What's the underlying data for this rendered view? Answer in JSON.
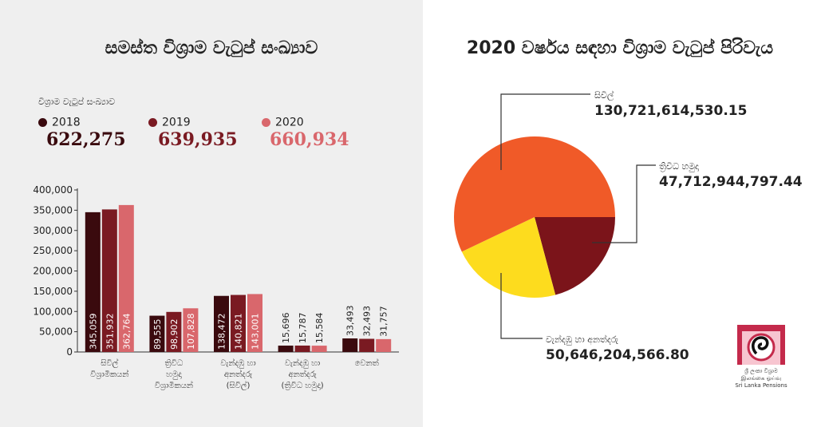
{
  "left_title": "සමස්ත විශ්‍රාම වැටුප් සංඛ්‍යාව",
  "right_title": "2020 වර්ෂය සඳහා විශ්‍රාම වැටුප් පිරිවැය",
  "totals": {
    "caption": "විශ්‍රාම වැටුප් සංඛ්‍යාව",
    "items": [
      {
        "year": "2018",
        "value": "622,275",
        "color": "#3a0a0e"
      },
      {
        "year": "2019",
        "value": "639,935",
        "color": "#7a1a22"
      },
      {
        "year": "2020",
        "value": "660,934",
        "color": "#d9676c"
      }
    ]
  },
  "logo": {
    "line1": "ශ්‍රී ලංකා විශ්‍රාම",
    "line2": "இலங்கை ஓய்வு",
    "line3": "Sri Lanka Pensions",
    "color": "#c42a4b"
  },
  "chart_data": [
    {
      "type": "bar",
      "categories": [
        [
          "සිවිල්",
          "විශ්‍රාමිකයන්"
        ],
        [
          "ත්‍රිවිධ",
          "හමුදා",
          "විශ්‍රාමිකයන්"
        ],
        [
          "වැන්දඹු හා",
          "අනත්දරු",
          "(සිවිල්)"
        ],
        [
          "වැන්දඹු හා",
          "අනත්දරු",
          "(ත්‍රිවිධ හමුදා)"
        ],
        [
          "වෙනත්"
        ]
      ],
      "series": [
        {
          "name": "2018",
          "color": "#3a0a0e",
          "values": [
            345059,
            89555,
            138472,
            15696,
            33493
          ],
          "labels": [
            "345,059",
            "89,555",
            "138,472",
            "15,696",
            "33,493"
          ]
        },
        {
          "name": "2019",
          "color": "#7a1a22",
          "values": [
            351932,
            98902,
            140821,
            15787,
            32493
          ],
          "labels": [
            "351,932",
            "98,902",
            "140,821",
            "15,787",
            "32,493"
          ]
        },
        {
          "name": "2020",
          "color": "#d9676c",
          "values": [
            362764,
            107828,
            143001,
            15584,
            31757
          ],
          "labels": [
            "362,764",
            "107,828",
            "143,001",
            "15,584",
            "31,757"
          ]
        }
      ],
      "ylim": [
        0,
        400000
      ],
      "yticks": [
        "0",
        "50,000",
        "100,000",
        "150,000",
        "200,000",
        "250,000",
        "300,000",
        "350,000",
        "400,000"
      ],
      "grid": false
    },
    {
      "type": "pie",
      "slices": [
        {
          "label": "සිවිල්",
          "value": 130721614530.15,
          "display": "130,721,614,530.15",
          "color": "#f05a28"
        },
        {
          "label": "ත්‍රිවිධ හමුදා",
          "value": 47712944797.44,
          "display": "47,712,944,797.44",
          "color": "#7b141a"
        },
        {
          "label": "වැන්දඹු හා අනත්දරු",
          "value": 50646204566.8,
          "display": "50,646,204,566.80",
          "color": "#fddc1e"
        }
      ]
    }
  ]
}
